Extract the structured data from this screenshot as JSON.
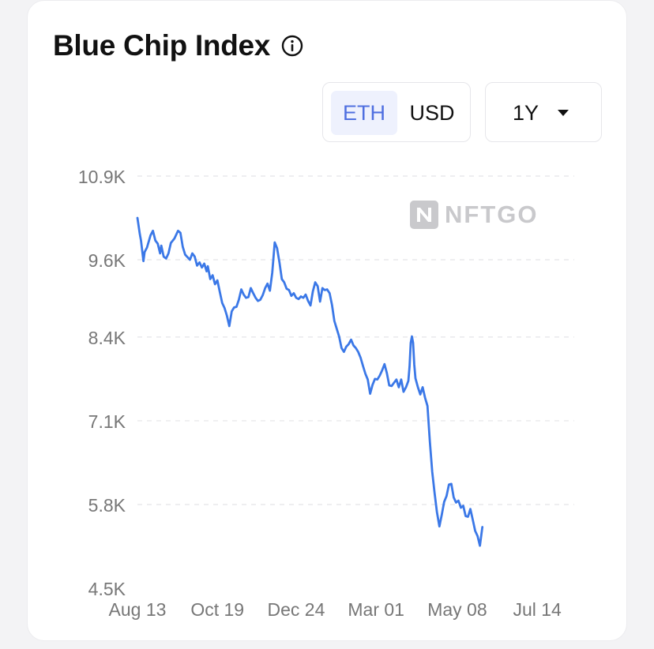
{
  "header": {
    "title": "Blue Chip Index",
    "info_icon": "info-circle-icon"
  },
  "currency_toggle": {
    "options": [
      "ETH",
      "USD"
    ],
    "selected": "ETH"
  },
  "range_select": {
    "label": "1Y",
    "icon": "caret-down-icon"
  },
  "watermark": {
    "text": "NFTGO",
    "icon": "nftgo-logo-icon"
  },
  "colors": {
    "line": "#3b78e7",
    "accent_text": "#4f6fe0",
    "accent_bg": "#eef1fd",
    "grid": "#e4e4e8",
    "tick_text": "#777777"
  },
  "chart_data": {
    "type": "line",
    "title": "Blue Chip Index",
    "unit": "ETH",
    "ylim": [
      4500,
      10900
    ],
    "y_ticks": [
      "10.9K",
      "9.6K",
      "8.4K",
      "7.1K",
      "5.8K",
      "4.5K"
    ],
    "y_tick_values": [
      10900,
      9600,
      8400,
      7100,
      5800,
      4500
    ],
    "x_ticks": [
      "Aug 13",
      "Oct 19",
      "Dec 24",
      "Mar 01",
      "May 08",
      "Jul 14"
    ],
    "x_tick_days": [
      0,
      67,
      133,
      200,
      268,
      335
    ],
    "x_domain_days": [
      0,
      366
    ],
    "grid": "horizontal-dashed",
    "series": [
      {
        "values": [
          [
            0,
            10250
          ],
          [
            2,
            10000
          ],
          [
            3,
            9900
          ],
          [
            5,
            9580
          ],
          [
            6,
            9720
          ],
          [
            8,
            9790
          ],
          [
            11,
            9980
          ],
          [
            13,
            10050
          ],
          [
            15,
            9900
          ],
          [
            17,
            9850
          ],
          [
            19,
            9700
          ],
          [
            20,
            9820
          ],
          [
            22,
            9650
          ],
          [
            24,
            9620
          ],
          [
            26,
            9700
          ],
          [
            28,
            9860
          ],
          [
            31,
            9930
          ],
          [
            34,
            10050
          ],
          [
            36,
            10020
          ],
          [
            38,
            9800
          ],
          [
            40,
            9680
          ],
          [
            42,
            9640
          ],
          [
            44,
            9600
          ],
          [
            46,
            9700
          ],
          [
            48,
            9650
          ],
          [
            50,
            9510
          ],
          [
            52,
            9560
          ],
          [
            54,
            9480
          ],
          [
            56,
            9540
          ],
          [
            58,
            9420
          ],
          [
            59,
            9500
          ],
          [
            61,
            9300
          ],
          [
            63,
            9360
          ],
          [
            65,
            9220
          ],
          [
            67,
            9280
          ],
          [
            69,
            9100
          ],
          [
            71,
            8930
          ],
          [
            73,
            8850
          ],
          [
            75,
            8730
          ],
          [
            77,
            8570
          ],
          [
            79,
            8800
          ],
          [
            81,
            8860
          ],
          [
            83,
            8870
          ],
          [
            85,
            8980
          ],
          [
            87,
            9140
          ],
          [
            89,
            9060
          ],
          [
            91,
            9010
          ],
          [
            93,
            9020
          ],
          [
            95,
            9160
          ],
          [
            97,
            9080
          ],
          [
            99,
            9010
          ],
          [
            101,
            8960
          ],
          [
            103,
            8980
          ],
          [
            105,
            9050
          ],
          [
            107,
            9160
          ],
          [
            109,
            9230
          ],
          [
            111,
            9120
          ],
          [
            113,
            9400
          ],
          [
            115,
            9870
          ],
          [
            117,
            9780
          ],
          [
            119,
            9560
          ],
          [
            121,
            9300
          ],
          [
            123,
            9250
          ],
          [
            125,
            9150
          ],
          [
            127,
            9130
          ],
          [
            129,
            9040
          ],
          [
            131,
            9080
          ],
          [
            133,
            9010
          ],
          [
            135,
            8990
          ],
          [
            137,
            9030
          ],
          [
            139,
            9010
          ],
          [
            141,
            9060
          ],
          [
            143,
            8960
          ],
          [
            145,
            8890
          ],
          [
            147,
            9110
          ],
          [
            149,
            9250
          ],
          [
            151,
            9190
          ],
          [
            153,
            8950
          ],
          [
            155,
            9160
          ],
          [
            157,
            9130
          ],
          [
            159,
            9140
          ],
          [
            161,
            9080
          ],
          [
            163,
            8900
          ],
          [
            165,
            8650
          ],
          [
            167,
            8530
          ],
          [
            169,
            8410
          ],
          [
            171,
            8230
          ],
          [
            173,
            8170
          ],
          [
            175,
            8250
          ],
          [
            177,
            8290
          ],
          [
            179,
            8360
          ],
          [
            181,
            8270
          ],
          [
            183,
            8230
          ],
          [
            185,
            8170
          ],
          [
            187,
            8080
          ],
          [
            189,
            7950
          ],
          [
            191,
            7830
          ],
          [
            193,
            7740
          ],
          [
            195,
            7520
          ],
          [
            197,
            7660
          ],
          [
            199,
            7750
          ],
          [
            201,
            7740
          ],
          [
            203,
            7800
          ],
          [
            205,
            7880
          ],
          [
            207,
            7980
          ],
          [
            209,
            7840
          ],
          [
            211,
            7650
          ],
          [
            213,
            7640
          ],
          [
            215,
            7690
          ],
          [
            217,
            7740
          ],
          [
            219,
            7620
          ],
          [
            221,
            7740
          ],
          [
            223,
            7550
          ],
          [
            225,
            7620
          ],
          [
            227,
            7720
          ],
          [
            228,
            7940
          ],
          [
            229,
            8310
          ],
          [
            230,
            8410
          ],
          [
            231,
            8310
          ],
          [
            232,
            7970
          ],
          [
            233,
            7760
          ],
          [
            235,
            7620
          ],
          [
            237,
            7510
          ],
          [
            239,
            7620
          ],
          [
            241,
            7460
          ],
          [
            243,
            7330
          ],
          [
            245,
            6780
          ],
          [
            247,
            6310
          ],
          [
            249,
            5980
          ],
          [
            251,
            5680
          ],
          [
            253,
            5460
          ],
          [
            255,
            5640
          ],
          [
            257,
            5840
          ],
          [
            259,
            5930
          ],
          [
            261,
            6110
          ],
          [
            263,
            6120
          ],
          [
            265,
            5910
          ],
          [
            267,
            5830
          ],
          [
            269,
            5860
          ],
          [
            271,
            5750
          ],
          [
            273,
            5780
          ],
          [
            275,
            5620
          ],
          [
            277,
            5610
          ],
          [
            279,
            5730
          ],
          [
            281,
            5560
          ],
          [
            283,
            5390
          ],
          [
            285,
            5310
          ],
          [
            287,
            5160
          ],
          [
            289,
            5450
          ]
        ]
      }
    ]
  }
}
